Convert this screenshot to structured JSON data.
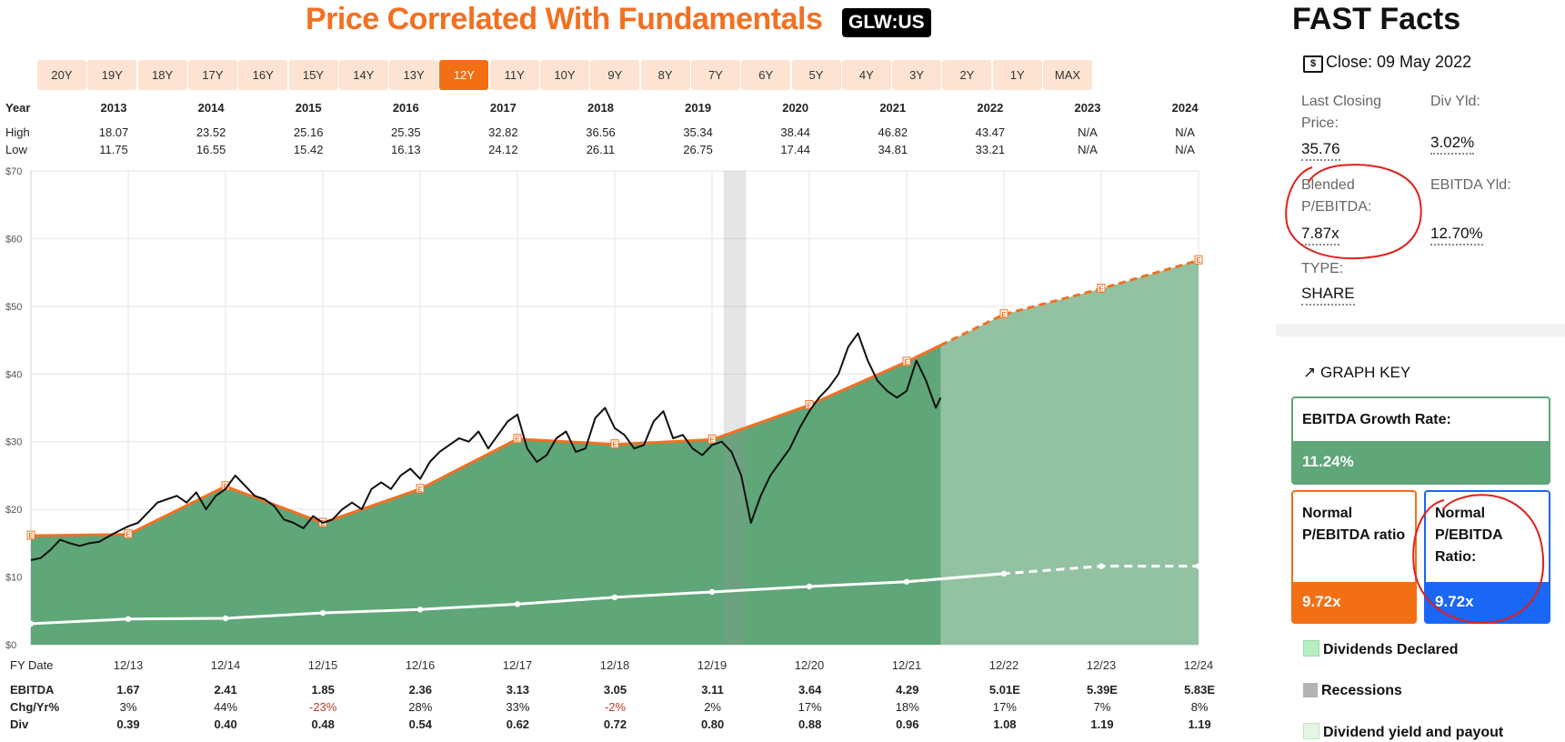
{
  "header": {
    "title": "Price Correlated With Fundamentals",
    "ticker": "GLW:US"
  },
  "range_buttons": [
    "20Y",
    "19Y",
    "18Y",
    "17Y",
    "16Y",
    "15Y",
    "14Y",
    "13Y",
    "12Y",
    "11Y",
    "10Y",
    "9Y",
    "8Y",
    "7Y",
    "6Y",
    "5Y",
    "4Y",
    "3Y",
    "2Y",
    "1Y",
    "MAX"
  ],
  "range_active": "12Y",
  "top_table": {
    "year_label": "Year",
    "high_label": "High",
    "low_label": "Low",
    "years": [
      "2013",
      "2014",
      "2015",
      "2016",
      "2017",
      "2018",
      "2019",
      "2020",
      "2021",
      "2022",
      "2023",
      "2024"
    ],
    "high": [
      "18.07",
      "23.52",
      "25.16",
      "25.35",
      "32.82",
      "36.56",
      "35.34",
      "38.44",
      "46.82",
      "43.47",
      "N/A",
      "N/A"
    ],
    "low": [
      "11.75",
      "16.55",
      "15.42",
      "16.13",
      "24.12",
      "26.11",
      "26.75",
      "17.44",
      "34.81",
      "33.21",
      "N/A",
      "N/A"
    ]
  },
  "bottom_table": {
    "fy_label": "FY Date",
    "ebitda_label": "EBITDA",
    "chg_label": "Chg/Yr%",
    "div_label": "Div",
    "ebitda": [
      "1.67",
      "2.41",
      "1.85",
      "2.36",
      "3.13",
      "3.05",
      "3.11",
      "3.64",
      "4.29",
      "5.01E",
      "5.39E",
      "5.83E"
    ],
    "chg": [
      "3%",
      "44%",
      "-23%",
      "28%",
      "33%",
      "-2%",
      "2%",
      "17%",
      "18%",
      "17%",
      "7%",
      "8%"
    ],
    "div": [
      "0.39",
      "0.40",
      "0.48",
      "0.54",
      "0.62",
      "0.72",
      "0.80",
      "0.88",
      "0.96",
      "1.08",
      "1.19",
      "1.19"
    ]
  },
  "chart_data": {
    "type": "area",
    "x_ticks": [
      "12/13",
      "12/14",
      "12/15",
      "12/16",
      "12/17",
      "12/18",
      "12/19",
      "12/20",
      "12/21",
      "12/22",
      "12/23",
      "12/24"
    ],
    "y_ticks": [
      "$0",
      "$10",
      "$20",
      "$30",
      "$40",
      "$50",
      "$60",
      "$70"
    ],
    "ylim": [
      0,
      70
    ],
    "xlim": [
      2012.75,
      2024.75
    ],
    "grid": true,
    "estimate_marker": "E",
    "fundamental_line": {
      "x": [
        2012.75,
        2013.75,
        2014.75,
        2015.75,
        2016.75,
        2017.75,
        2018.75,
        2019.75,
        2020.75,
        2021.75,
        2022.75,
        2023.75,
        2024.75
      ],
      "y": [
        16.1,
        16.3,
        23.4,
        18.0,
        23.0,
        30.4,
        29.6,
        30.3,
        35.4,
        41.8,
        48.8,
        52.6,
        56.8
      ],
      "estimate_from_index": 10
    },
    "last_actual_x": 2022.1,
    "recession": [
      2019.87,
      2020.1
    ],
    "normal_line": {
      "x": [
        2012.75,
        2013.75,
        2014.75,
        2015.75,
        2016.75,
        2017.75,
        2018.75,
        2019.75,
        2020.75,
        2021.75,
        2022.75,
        2023.75,
        2024.75
      ],
      "y": [
        3.1,
        3.8,
        3.9,
        4.7,
        5.2,
        6.0,
        7.0,
        7.8,
        8.6,
        9.3,
        10.5,
        11.6,
        11.6
      ]
    },
    "price": {
      "x": [
        2012.75,
        2012.85,
        2012.95,
        2013.05,
        2013.15,
        2013.25,
        2013.35,
        2013.45,
        2013.55,
        2013.65,
        2013.75,
        2013.85,
        2013.95,
        2014.05,
        2014.15,
        2014.25,
        2014.35,
        2014.45,
        2014.55,
        2014.65,
        2014.75,
        2014.85,
        2014.95,
        2015.05,
        2015.15,
        2015.25,
        2015.35,
        2015.45,
        2015.55,
        2015.65,
        2015.75,
        2015.85,
        2015.95,
        2016.05,
        2016.15,
        2016.25,
        2016.35,
        2016.45,
        2016.55,
        2016.65,
        2016.75,
        2016.85,
        2016.95,
        2017.05,
        2017.15,
        2017.25,
        2017.35,
        2017.45,
        2017.55,
        2017.65,
        2017.75,
        2017.85,
        2017.95,
        2018.05,
        2018.15,
        2018.25,
        2018.35,
        2018.45,
        2018.55,
        2018.65,
        2018.75,
        2018.85,
        2018.95,
        2019.05,
        2019.15,
        2019.25,
        2019.35,
        2019.45,
        2019.55,
        2019.65,
        2019.75,
        2019.85,
        2019.95,
        2020.05,
        2020.15,
        2020.25,
        2020.35,
        2020.45,
        2020.55,
        2020.65,
        2020.75,
        2020.85,
        2020.95,
        2021.05,
        2021.15,
        2021.25,
        2021.35,
        2021.45,
        2021.55,
        2021.65,
        2021.75,
        2021.85,
        2021.95,
        2022.05,
        2022.1
      ],
      "y": [
        12.5,
        12.8,
        14.0,
        15.5,
        15.0,
        14.6,
        15.0,
        15.2,
        16.0,
        16.8,
        17.5,
        18.0,
        19.5,
        21.0,
        21.5,
        22.0,
        21.0,
        22.5,
        20.0,
        22.0,
        23.0,
        25.0,
        23.5,
        22.0,
        21.5,
        20.5,
        18.5,
        18.0,
        17.2,
        19.0,
        18.0,
        18.5,
        20.0,
        21.0,
        20.0,
        23.0,
        24.0,
        23.0,
        25.0,
        26.0,
        24.5,
        27.0,
        28.5,
        29.5,
        30.5,
        30.0,
        31.5,
        29.0,
        31.0,
        33.0,
        34.0,
        29.0,
        27.0,
        28.0,
        30.5,
        31.5,
        28.5,
        29.0,
        33.5,
        35.0,
        32.0,
        31.0,
        29.0,
        29.5,
        33.0,
        34.5,
        30.5,
        31.0,
        29.0,
        28.0,
        29.5,
        30.0,
        28.5,
        25.0,
        18.0,
        22.0,
        25.0,
        27.0,
        29.0,
        32.0,
        34.5,
        36.5,
        38.0,
        40.0,
        44.0,
        46.0,
        42.0,
        39.0,
        37.5,
        36.5,
        37.5,
        42.0,
        39.0,
        35.0,
        36.5
      ]
    }
  },
  "fast_facts": {
    "title": "FAST Facts",
    "close_label": "Close: 09 May 2022",
    "last_close_label": "Last Closing Price:",
    "last_close_value": "35.76",
    "div_yld_label": "Div Yld:",
    "div_yld_value": "3.02%",
    "pe_label": "Blended P/EBITDA:",
    "pe_value": "7.87x",
    "ey_label": "EBITDA Yld:",
    "ey_value": "12.70%",
    "type_label": "TYPE:",
    "type_value": "SHARE"
  },
  "graph_key": {
    "title": "GRAPH KEY",
    "growth_label": "EBITDA Growth Rate:",
    "growth_value": "11.24%",
    "normal1_label": "Normal P/EBITDA ratio",
    "normal1_value": "9.72x",
    "normal2_label": "Normal P/EBITDA Ratio:",
    "normal2_value": "9.72x",
    "legend_div": "Dividends Declared",
    "legend_rec": "Recessions",
    "legend_yield": "Dividend yield and payout"
  },
  "colors": {
    "orange": "#f37021",
    "green_area": "#5fa678",
    "green_area_est": "#93c2a2",
    "blue": "#1a66f5",
    "annotation": "#e0201b"
  }
}
